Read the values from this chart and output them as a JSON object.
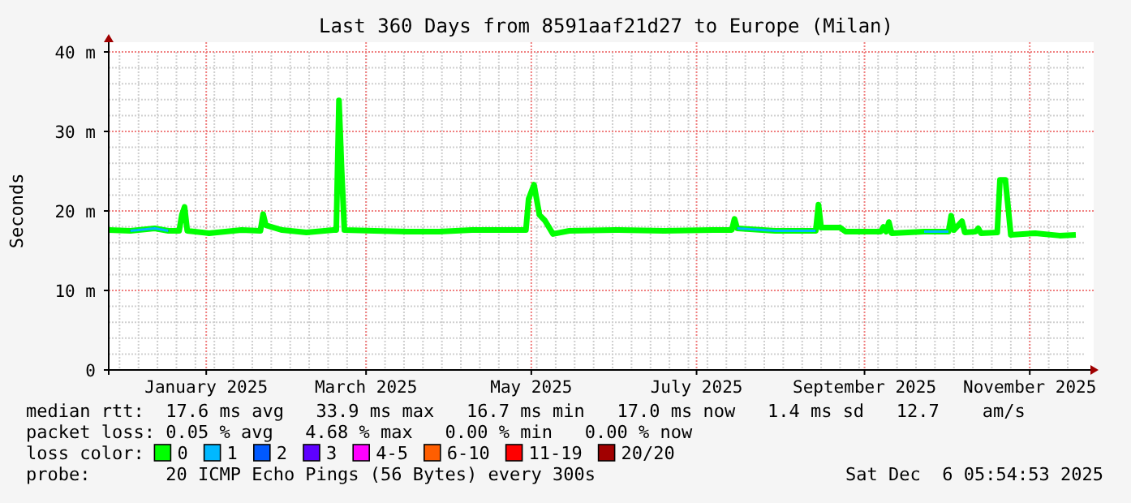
{
  "chart_data": {
    "type": "line",
    "title": "Last 360 Days from 8591aaf21d27 to Europe (Milan)",
    "ylabel": "Seconds",
    "xlim": [
      "2024-12-11",
      "2025-12-06"
    ],
    "xticks": [
      {
        "value": "2025-01-16",
        "label": "January 2025"
      },
      {
        "value": "2025-03-16",
        "label": "March 2025"
      },
      {
        "value": "2025-05-16",
        "label": "May 2025"
      },
      {
        "value": "2025-07-16",
        "label": "July 2025"
      },
      {
        "value": "2025-09-16",
        "label": "September 2025"
      },
      {
        "value": "2025-11-16",
        "label": "November 2025"
      }
    ],
    "ylim": [
      0,
      40
    ],
    "yticks": [
      {
        "value": 0,
        "label": "0"
      },
      {
        "value": 10,
        "label": "10 m"
      },
      {
        "value": 20,
        "label": "20 m"
      },
      {
        "value": 30,
        "label": "30 m"
      },
      {
        "value": 40,
        "label": "40 m"
      }
    ],
    "grid": true,
    "legend": "bottom",
    "legend_title": "loss color:",
    "line_style": "solid",
    "series": [
      {
        "name": "0",
        "color": "#00ff00",
        "x": [
          "2024-12-11",
          "2024-12-19",
          "2024-12-28",
          "2025-01-02",
          "2025-01-06",
          "2025-01-07",
          "2025-01-08",
          "2025-01-09",
          "2025-01-17",
          "2025-01-29",
          "2025-02-05",
          "2025-02-06",
          "2025-02-07",
          "2025-02-13",
          "2025-02-22",
          "2025-03-04",
          "2025-03-05",
          "2025-03-06",
          "2025-03-07",
          "2025-03-08",
          "2025-03-19",
          "2025-03-31",
          "2025-04-12",
          "2025-04-24",
          "2025-05-06",
          "2025-05-14",
          "2025-05-15",
          "2025-05-17",
          "2025-05-19",
          "2025-05-21",
          "2025-05-24",
          "2025-05-30",
          "2025-06-16",
          "2025-07-04",
          "2025-07-22",
          "2025-07-29",
          "2025-07-30",
          "2025-07-31",
          "2025-08-14",
          "2025-08-29",
          "2025-08-30",
          "2025-08-31",
          "2025-09-07",
          "2025-09-09",
          "2025-09-22",
          "2025-09-23",
          "2025-09-24",
          "2025-09-25",
          "2025-09-26",
          "2025-10-08",
          "2025-10-17",
          "2025-10-18",
          "2025-10-19",
          "2025-10-22",
          "2025-10-23",
          "2025-10-27",
          "2025-10-28",
          "2025-10-29",
          "2025-11-04",
          "2025-11-05",
          "2025-11-07",
          "2025-11-08",
          "2025-11-09",
          "2025-11-18",
          "2025-11-27",
          "2025-12-03"
        ],
        "values": [
          17.6,
          17.5,
          17.8,
          17.5,
          17.5,
          19.5,
          20.5,
          17.5,
          17.2,
          17.6,
          17.5,
          19.6,
          18.2,
          17.6,
          17.3,
          17.6,
          17.6,
          33.9,
          25,
          17.6,
          17.5,
          17.4,
          17.4,
          17.6,
          17.6,
          17.6,
          21.5,
          23.3,
          19.5,
          18.8,
          17.1,
          17.5,
          17.6,
          17.5,
          17.6,
          17.6,
          19,
          17.8,
          17.5,
          17.5,
          20.8,
          17.9,
          17.9,
          17.4,
          17.4,
          18,
          17.4,
          18.6,
          17.2,
          17.4,
          17.4,
          19.4,
          17.6,
          18.7,
          17.3,
          17.4,
          17.8,
          17.2,
          17.3,
          23.9,
          23.9,
          20.5,
          17,
          17.2,
          16.9,
          17
        ]
      },
      {
        "name": "1",
        "color": "#00b8ff",
        "x": [
          "2024-12-19",
          "2024-12-28",
          "2025-01-02",
          "2025-01-03",
          "2025-07-31",
          "2025-08-14",
          "2025-08-29",
          "2025-08-30",
          "2025-10-08",
          "2025-10-17"
        ],
        "values": [
          17.5,
          17.8,
          17.5,
          null,
          17.8,
          17.5,
          17.5,
          null,
          17.4,
          17.4
        ]
      },
      {
        "name": "2",
        "color": "#0059ff"
      },
      {
        "name": "3",
        "color": "#5e00ff"
      },
      {
        "name": "4-5",
        "color": "#ff00ff"
      },
      {
        "name": "6-10",
        "color": "#ff5e00"
      },
      {
        "name": "11-19",
        "color": "#ff0000"
      },
      {
        "name": "20/20",
        "color": "#a10000"
      }
    ],
    "annotations": [
      "median rtt:  17.6 ms avg   33.9 ms max   16.7 ms min   17.0 ms now   1.4 ms sd   12.7    am/s",
      "packet loss: 0.05 % avg   4.68 % max   0.00 % min   0.00 % now",
      "probe:       20 ICMP Echo Pings (56 Bytes) every 300s",
      "Sat Dec  6 05:54:53 2025"
    ]
  }
}
